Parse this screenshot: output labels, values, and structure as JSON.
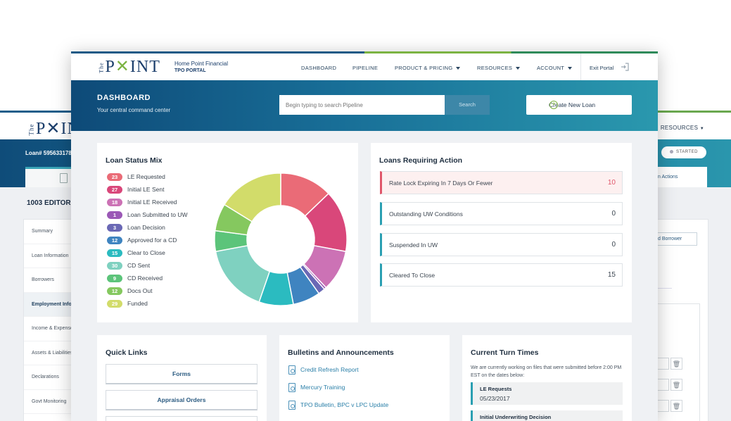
{
  "background_app": {
    "logo_prefix": "The",
    "logo_text": "P✕INT",
    "nav_resources": "RESOURCES",
    "loan_label": "Loan# 595633178",
    "status_badge": "STARTED",
    "tab_right_label": "n Actions",
    "editor_title": "1003 EDITOR",
    "side_items": [
      "Summary",
      "Loan Information",
      "Borrowers",
      "Employment Info",
      "Income & Expenses",
      "Assets & Liabilities",
      "Declarations",
      "Govt Monitoring"
    ],
    "add_borrower": "d Borrower"
  },
  "header": {
    "logo_prefix": "The",
    "logo_p": "P",
    "logo_x": "✕",
    "logo_int": "INT",
    "brand_line1": "Home Point Financial",
    "brand_line2": "TPO PORTAL",
    "nav": {
      "dashboard": "DASHBOARD",
      "pipeline": "PIPELINE",
      "product_pricing": "PRODUCT & PRICING",
      "resources": "RESOURCES",
      "account": "ACCOUNT"
    },
    "exit": "Exit Portal"
  },
  "hero": {
    "title": "DASHBOARD",
    "subtitle": "Your central command center",
    "search_placeholder": "Begin typing to search Pipeline",
    "search_button": "Search",
    "create_button": "Create New Loan",
    "create_icon": "+"
  },
  "loan_status": {
    "title": "Loan Status Mix",
    "items": [
      {
        "count": "23",
        "label": "LE Requested",
        "color": "#ea6b77"
      },
      {
        "count": "27",
        "label": "Initial LE Sent",
        "color": "#d9477a"
      },
      {
        "count": "18",
        "label": "Initial LE Received",
        "color": "#cc72b5"
      },
      {
        "count": "1",
        "label": "Loan Submitted to UW",
        "color": "#9b59b6"
      },
      {
        "count": "3",
        "label": "Loan Decision",
        "color": "#6a68b5"
      },
      {
        "count": "12",
        "label": "Approved for a CD",
        "color": "#3f84c0"
      },
      {
        "count": "15",
        "label": "Clear to Close",
        "color": "#2bbbc0"
      },
      {
        "count": "30",
        "label": "CD Sent",
        "color": "#7fd1c0"
      },
      {
        "count": "9",
        "label": "CD Received",
        "color": "#5cc47a"
      },
      {
        "count": "12",
        "label": "Docs Out",
        "color": "#85c85f"
      },
      {
        "count": "29",
        "label": "Funded",
        "color": "#d2dc6a"
      }
    ]
  },
  "chart_data": {
    "type": "pie",
    "title": "Loan Status Mix",
    "categories": [
      "LE Requested",
      "Initial LE Sent",
      "Initial LE Received",
      "Loan Submitted to UW",
      "Loan Decision",
      "Approved for a CD",
      "Clear to Close",
      "CD Sent",
      "CD Received",
      "Docs Out",
      "Funded"
    ],
    "values": [
      23,
      27,
      18,
      1,
      3,
      12,
      15,
      30,
      9,
      12,
      29
    ],
    "donut": true
  },
  "action": {
    "title": "Loans Requiring Action",
    "rows": [
      {
        "label": "Rate Lock Expiring In 7 Days Or Fewer",
        "value": "10"
      },
      {
        "label": "Outstanding UW Conditions",
        "value": "0"
      },
      {
        "label": "Suspended In UW",
        "value": "0"
      },
      {
        "label": "Cleared To Close",
        "value": "15"
      }
    ]
  },
  "quick_links": {
    "title": "Quick Links",
    "items": [
      "Forms",
      "Appraisal Orders"
    ]
  },
  "bulletins": {
    "title": "Bulletins and Announcements",
    "items": [
      "Credit Refresh Report",
      "Mercury Training",
      "TPO Bulletin, BPC v LPC Update"
    ]
  },
  "turn_times": {
    "title": "Current Turn Times",
    "text": "We are currently working on files that were submitted before 2:00 PM EST on the dates below:",
    "items": [
      {
        "label": "LE Requests",
        "date": "05/23/2017"
      },
      {
        "label": "Initial Underwriting Decision",
        "date": ""
      }
    ]
  }
}
